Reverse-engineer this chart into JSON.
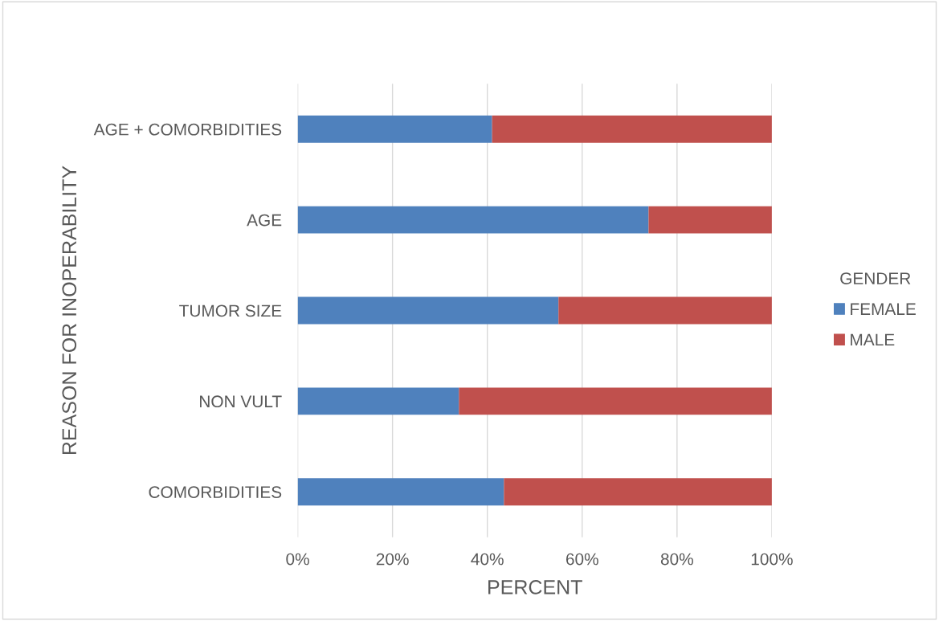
{
  "chart_data": {
    "type": "bar",
    "orientation": "horizontal",
    "stacked": true,
    "xlabel": "PERCENT",
    "ylabel": "REASON FOR INOPERABILITY",
    "legend_title": "GENDER",
    "legend": "right",
    "grid": "x",
    "categories": [
      "AGE + COMORBIDITIES",
      "AGE",
      "TUMOR SIZE",
      "NON VULT",
      "COMORBIDITIES"
    ],
    "series": [
      {
        "name": "FEMALE",
        "color": "#4f81bd",
        "values": [
          41,
          74,
          55,
          34,
          43.5
        ]
      },
      {
        "name": "MALE",
        "color": "#c0504d",
        "values": [
          59,
          26,
          45,
          66,
          56.5
        ]
      }
    ],
    "xlim": [
      0,
      100
    ],
    "xticks": [
      {
        "value": 0,
        "label": "0%"
      },
      {
        "value": 20,
        "label": "20%"
      },
      {
        "value": 40,
        "label": "40%"
      },
      {
        "value": 60,
        "label": "60%"
      },
      {
        "value": 80,
        "label": "80%"
      },
      {
        "value": 100,
        "label": "100%"
      }
    ]
  }
}
